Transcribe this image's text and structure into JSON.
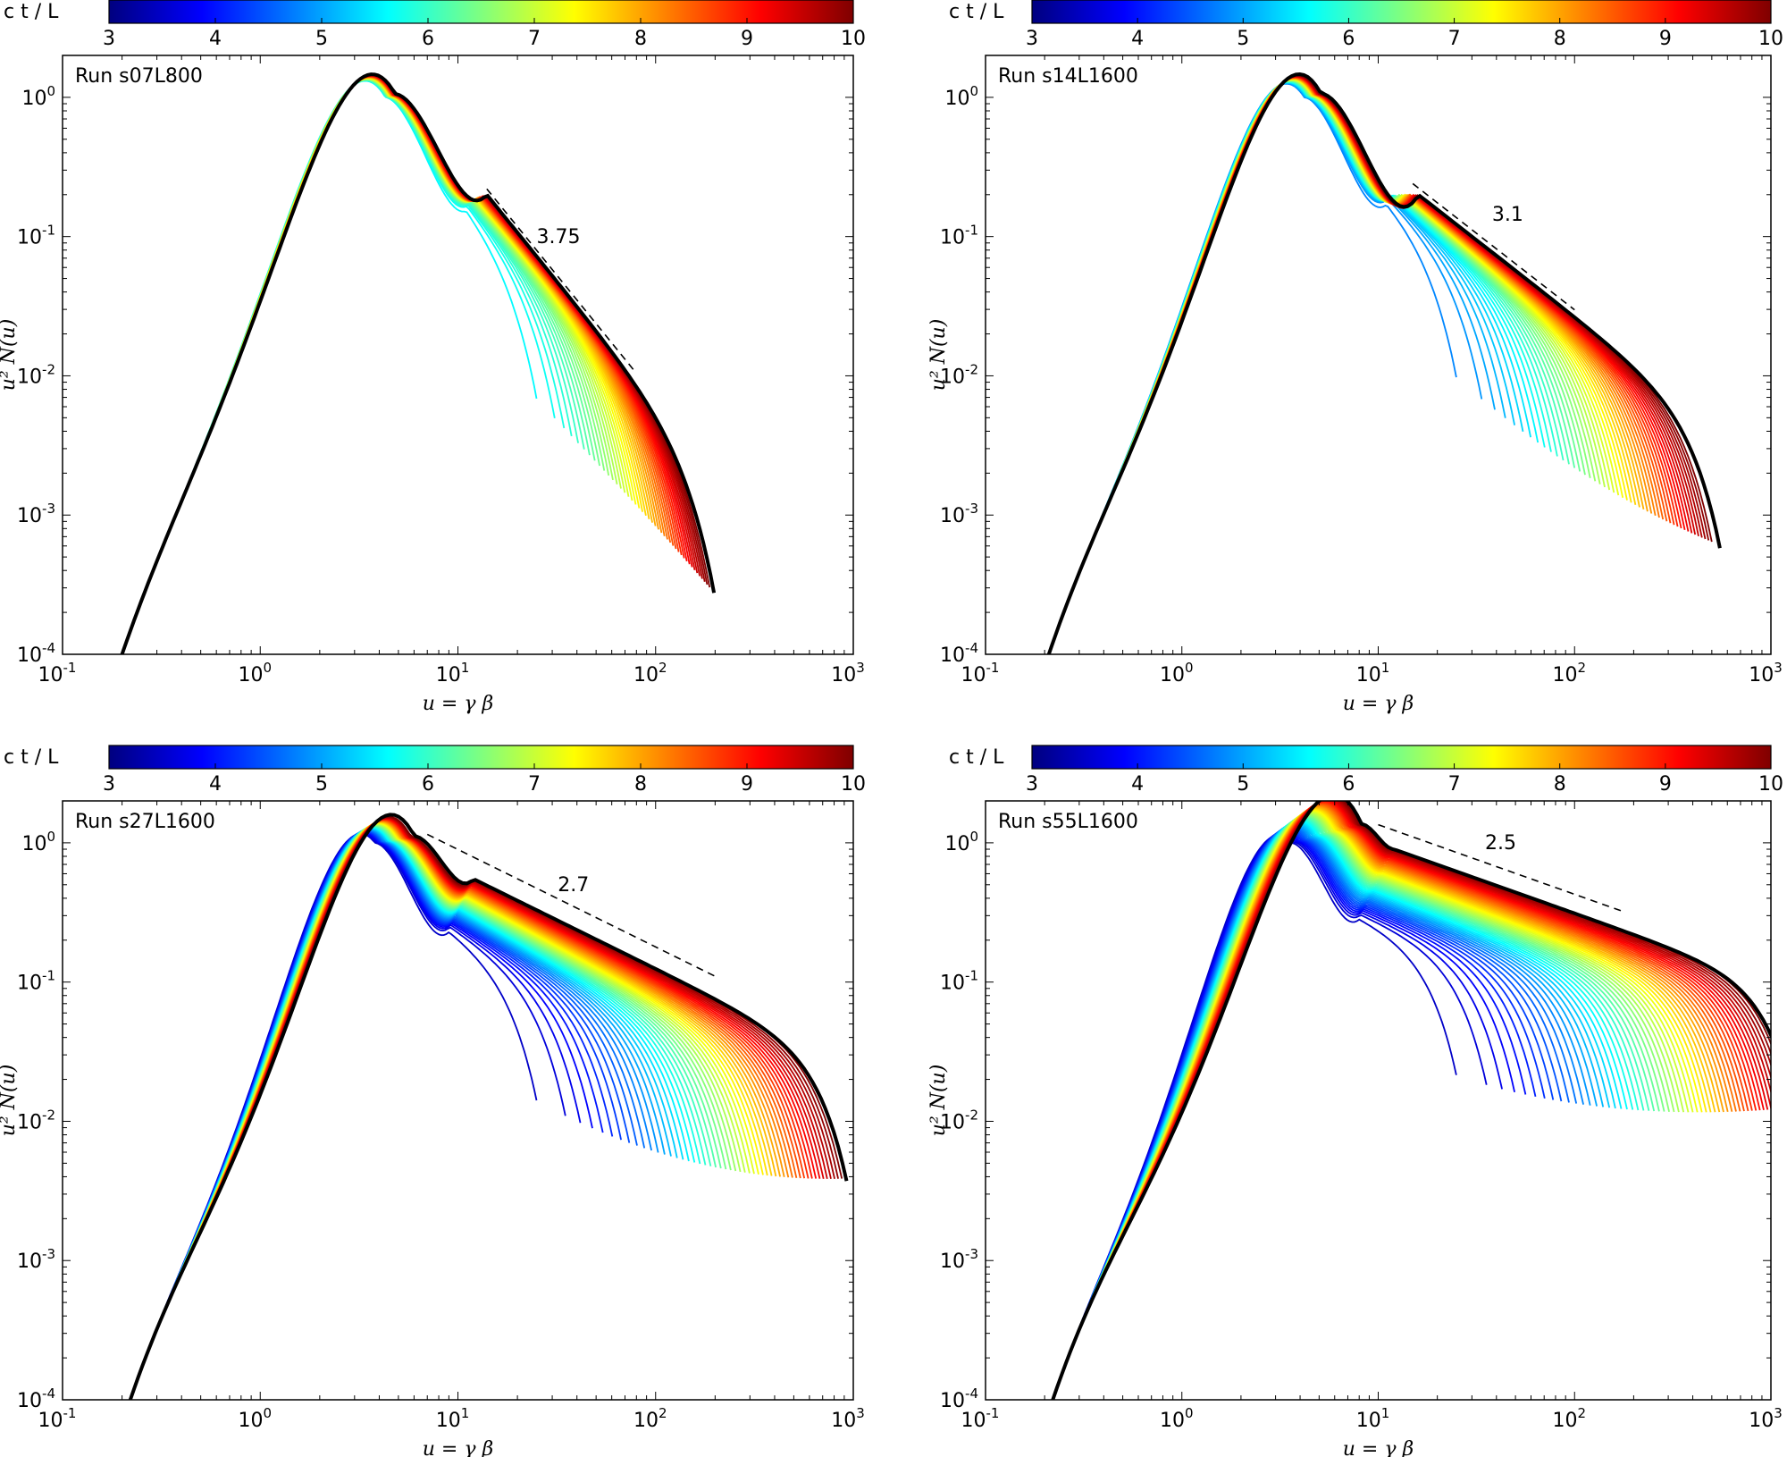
{
  "chart_data": [
    {
      "type": "line",
      "run_label": "Run s07L800",
      "colorbar": {
        "label": "c t / L",
        "ticks": [
          "3",
          "4",
          "5",
          "6",
          "7",
          "8",
          "9",
          "10"
        ],
        "range": [
          3,
          10
        ]
      },
      "xlabel": "u = γ β",
      "ylabel": "u² N(u)",
      "xscale": "log",
      "yscale": "log",
      "xlim": [
        0.1,
        1000
      ],
      "ylim": [
        0.0001,
        2
      ],
      "xticks": [
        {
          "base": "10",
          "exp": "-1"
        },
        {
          "base": "10",
          "exp": "0"
        },
        {
          "base": "10",
          "exp": "1"
        },
        {
          "base": "10",
          "exp": "2"
        },
        {
          "base": "10",
          "exp": "3"
        }
      ],
      "yticks": [
        {
          "base": "10",
          "exp": "-4"
        },
        {
          "base": "10",
          "exp": "-3"
        },
        {
          "base": "10",
          "exp": "-2"
        },
        {
          "base": "10",
          "exp": "-1"
        },
        {
          "base": "10",
          "exp": "0"
        }
      ],
      "series_ct_range": [
        5.6,
        10
      ],
      "series_count": 44,
      "early": {
        "peak_u": 4.3,
        "peak_y": 1.0,
        "width": 0.22,
        "knee_u": 11,
        "knee_y": 0.18,
        "cutoff_u": 20,
        "tail_slope": 1.6
      },
      "late": {
        "peak_u": 4.8,
        "peak_y": 1.05,
        "width": 0.22,
        "knee_u": 14,
        "knee_y": 0.2,
        "cutoff_u": 150,
        "tail_slope": 1.75
      },
      "final_black": {
        "peak_u": 4.8,
        "peak_y": 1.06,
        "width": 0.22,
        "knee_u": 14,
        "knee_y": 0.2,
        "cutoff_u": 158,
        "tail_slope": 1.75
      },
      "low_anchor": {
        "u": 0.2,
        "y": 0.0001,
        "slope": 4.1
      },
      "powerlaw": {
        "label": "3.75",
        "slope": -1.75,
        "u_range": [
          14,
          80
        ],
        "y_at_start": 0.22,
        "label_u": 25,
        "label_y": 0.09
      }
    },
    {
      "type": "line",
      "run_label": "Run s14L1600",
      "colorbar": {
        "label": "c t / L",
        "ticks": [
          "3",
          "4",
          "5",
          "6",
          "7",
          "8",
          "9",
          "10"
        ],
        "range": [
          3,
          10
        ]
      },
      "xlabel": "u = γ β",
      "ylabel": "u² N(u)",
      "xscale": "log",
      "yscale": "log",
      "xlim": [
        0.1,
        1000
      ],
      "ylim": [
        0.0001,
        2
      ],
      "xticks": [
        {
          "base": "10",
          "exp": "-1"
        },
        {
          "base": "10",
          "exp": "0"
        },
        {
          "base": "10",
          "exp": "1"
        },
        {
          "base": "10",
          "exp": "2"
        },
        {
          "base": "10",
          "exp": "3"
        }
      ],
      "yticks": [
        {
          "base": "10",
          "exp": "-4"
        },
        {
          "base": "10",
          "exp": "-3"
        },
        {
          "base": "10",
          "exp": "-2"
        },
        {
          "base": "10",
          "exp": "-1"
        },
        {
          "base": "10",
          "exp": "0"
        }
      ],
      "series_ct_range": [
        4.8,
        10
      ],
      "series_count": 48,
      "early": {
        "peak_u": 4.2,
        "peak_y": 1.0,
        "width": 0.21,
        "knee_u": 11,
        "knee_y": 0.2,
        "cutoff_u": 20,
        "tail_slope": 1.3
      },
      "late": {
        "peak_u": 5.0,
        "peak_y": 1.06,
        "width": 0.21,
        "knee_u": 16,
        "knee_y": 0.2,
        "cutoff_u": 400,
        "tail_slope": 1.1
      },
      "final_black": {
        "peak_u": 5.1,
        "peak_y": 1.07,
        "width": 0.21,
        "knee_u": 16,
        "knee_y": 0.2,
        "cutoff_u": 440,
        "tail_slope": 1.1
      },
      "low_anchor": {
        "u": 0.21,
        "y": 0.0001,
        "slope": 4.1
      },
      "powerlaw": {
        "label": "3.1",
        "slope": -1.1,
        "u_range": [
          15,
          100
        ],
        "y_at_start": 0.24,
        "label_u": 38,
        "label_y": 0.13
      }
    },
    {
      "type": "line",
      "run_label": "Run s27L1600",
      "colorbar": {
        "label": "c t / L",
        "ticks": [
          "3",
          "4",
          "5",
          "6",
          "7",
          "8",
          "9",
          "10"
        ],
        "range": [
          3,
          10
        ]
      },
      "xlabel": "u = γ β",
      "ylabel": "u² N(u)",
      "xscale": "log",
      "yscale": "log",
      "xlim": [
        0.1,
        1000
      ],
      "ylim": [
        0.0001,
        2
      ],
      "xticks": [
        {
          "base": "10",
          "exp": "-1"
        },
        {
          "base": "10",
          "exp": "0"
        },
        {
          "base": "10",
          "exp": "1"
        },
        {
          "base": "10",
          "exp": "2"
        },
        {
          "base": "10",
          "exp": "3"
        }
      ],
      "yticks": [
        {
          "base": "10",
          "exp": "-4"
        },
        {
          "base": "10",
          "exp": "-3"
        },
        {
          "base": "10",
          "exp": "-2"
        },
        {
          "base": "10",
          "exp": "-1"
        },
        {
          "base": "10",
          "exp": "0"
        }
      ],
      "series_ct_range": [
        3.5,
        10
      ],
      "series_count": 52,
      "early": {
        "peak_u": 3.8,
        "peak_y": 1.0,
        "width": 0.2,
        "knee_u": 9,
        "knee_y": 0.25,
        "cutoff_u": 20,
        "tail_slope": 0.9
      },
      "late": {
        "peak_u": 5.8,
        "peak_y": 1.1,
        "width": 0.2,
        "knee_u": 12,
        "knee_y": 0.55,
        "cutoff_u": 700,
        "tail_slope": 0.7
      },
      "final_black": {
        "peak_u": 6.0,
        "peak_y": 1.12,
        "width": 0.2,
        "knee_u": 12,
        "knee_y": 0.55,
        "cutoff_u": 740,
        "tail_slope": 0.7
      },
      "low_anchor": {
        "u": 0.22,
        "y": 0.0001,
        "slope": 4.1
      },
      "powerlaw": {
        "label": "2.7",
        "slope": -0.7,
        "u_range": [
          7,
          200
        ],
        "y_at_start": 1.15,
        "label_u": 32,
        "label_y": 0.45
      }
    },
    {
      "type": "line",
      "run_label": "Run s55L1600",
      "colorbar": {
        "label": "c t / L",
        "ticks": [
          "3",
          "4",
          "5",
          "6",
          "7",
          "8",
          "9",
          "10"
        ],
        "range": [
          3,
          10
        ]
      },
      "xlabel": "u = γ β",
      "ylabel": "u² N(u)",
      "xscale": "log",
      "yscale": "log",
      "xlim": [
        0.1,
        1000
      ],
      "ylim": [
        0.0001,
        2
      ],
      "xticks": [
        {
          "base": "10",
          "exp": "-1"
        },
        {
          "base": "10",
          "exp": "0"
        },
        {
          "base": "10",
          "exp": "1"
        },
        {
          "base": "10",
          "exp": "2"
        },
        {
          "base": "10",
          "exp": "3"
        }
      ],
      "yticks": [
        {
          "base": "10",
          "exp": "-4"
        },
        {
          "base": "10",
          "exp": "-3"
        },
        {
          "base": "10",
          "exp": "-2"
        },
        {
          "base": "10",
          "exp": "-1"
        },
        {
          "base": "10",
          "exp": "0"
        }
      ],
      "series_ct_range": [
        3.5,
        10
      ],
      "series_count": 56,
      "early": {
        "peak_u": 3.6,
        "peak_y": 1.0,
        "width": 0.2,
        "knee_u": 8,
        "knee_y": 0.3,
        "cutoff_u": 20,
        "tail_slope": 0.6
      },
      "late": {
        "peak_u": 8.0,
        "peak_y": 1.35,
        "width": 0.2,
        "knee_u": 12,
        "knee_y": 0.9,
        "cutoff_u": 1000,
        "tail_slope": 0.5
      },
      "final_black": {
        "peak_u": 8.2,
        "peak_y": 1.37,
        "width": 0.2,
        "knee_u": 12,
        "knee_y": 0.9,
        "cutoff_u": 1050,
        "tail_slope": 0.5
      },
      "low_anchor": {
        "u": 0.22,
        "y": 0.0001,
        "slope": 4.1
      },
      "powerlaw": {
        "label": "2.5",
        "slope": -0.5,
        "u_range": [
          10,
          180
        ],
        "y_at_start": 1.35,
        "label_u": 35,
        "label_y": 0.9
      }
    }
  ],
  "colormap_stops": [
    "#00007f",
    "#0000ff",
    "#007fff",
    "#00ffff",
    "#7fff7f",
    "#ffff00",
    "#ff7f00",
    "#ff0000",
    "#7f0000"
  ]
}
